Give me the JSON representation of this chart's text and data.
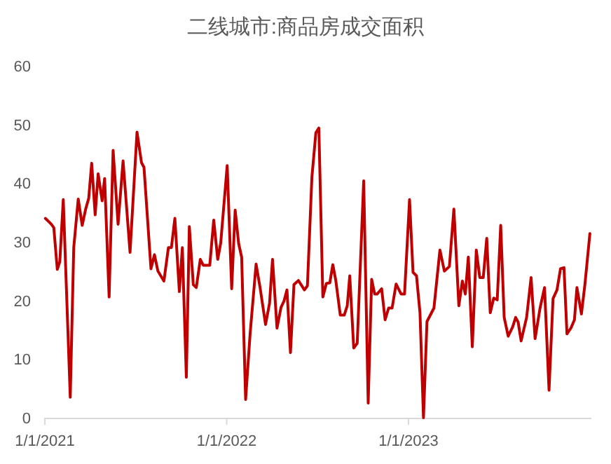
{
  "chart_data": {
    "type": "line",
    "title": "二线城市:商品房成交面积",
    "x": [
      "2021-01-02",
      "2021-01-14",
      "2021-01-19",
      "2021-01-26",
      "2021-01-31",
      "2021-02-07",
      "2021-02-21",
      "2021-02-28",
      "2021-03-09",
      "2021-03-17",
      "2021-03-24",
      "2021-03-30",
      "2021-04-05",
      "2021-04-12",
      "2021-04-18",
      "2021-04-26",
      "2021-05-01",
      "2021-05-10",
      "2021-05-18",
      "2021-05-28",
      "2021-06-07",
      "2021-06-21",
      "2021-07-05",
      "2021-07-14",
      "2021-07-19",
      "2021-08-02",
      "2021-08-09",
      "2021-08-16",
      "2021-08-28",
      "2021-09-06",
      "2021-09-12",
      "2021-09-19",
      "2021-09-28",
      "2021-10-04",
      "2021-10-12",
      "2021-10-18",
      "2021-10-26",
      "2021-11-01",
      "2021-11-09",
      "2021-11-15",
      "2021-11-28",
      "2021-12-06",
      "2021-12-14",
      "2021-12-20",
      "2022-01-02",
      "2022-01-11",
      "2022-01-18",
      "2022-01-25",
      "2022-01-31",
      "2022-02-08",
      "2022-02-17",
      "2022-03-01",
      "2022-03-09",
      "2022-03-20",
      "2022-03-28",
      "2022-04-03",
      "2022-04-12",
      "2022-04-20",
      "2022-04-26",
      "2022-05-02",
      "2022-05-09",
      "2022-05-16",
      "2022-05-25",
      "2022-06-06",
      "2022-06-12",
      "2022-06-21",
      "2022-06-29",
      "2022-07-05",
      "2022-07-13",
      "2022-07-20",
      "2022-07-27",
      "2022-08-02",
      "2022-08-08",
      "2022-08-17",
      "2022-08-25",
      "2022-08-31",
      "2022-09-05",
      "2022-09-13",
      "2022-09-20",
      "2022-10-03",
      "2022-10-12",
      "2022-10-19",
      "2022-10-25",
      "2022-10-30",
      "2022-11-08",
      "2022-11-15",
      "2022-11-22",
      "2022-11-29",
      "2022-12-07",
      "2022-12-17",
      "2022-12-24",
      "2023-01-03",
      "2023-01-10",
      "2023-01-17",
      "2023-01-24",
      "2023-01-31",
      "2023-02-07",
      "2023-02-21",
      "2023-03-05",
      "2023-03-14",
      "2023-03-24",
      "2023-04-02",
      "2023-04-12",
      "2023-04-19",
      "2023-04-25",
      "2023-05-01",
      "2023-05-09",
      "2023-05-17",
      "2023-05-24",
      "2023-05-31",
      "2023-06-07",
      "2023-06-14",
      "2023-06-21",
      "2023-06-28",
      "2023-07-05",
      "2023-07-12",
      "2023-07-20",
      "2023-07-29",
      "2023-08-04",
      "2023-08-09",
      "2023-08-15",
      "2023-08-26",
      "2023-09-04",
      "2023-09-12",
      "2023-09-22",
      "2023-10-01",
      "2023-10-10",
      "2023-10-18",
      "2023-10-26",
      "2023-11-02",
      "2023-11-09",
      "2023-11-15",
      "2023-11-23",
      "2023-11-30",
      "2023-12-05",
      "2023-12-14",
      "2023-12-21",
      "2023-12-31"
    ],
    "series": [
      {
        "color": "#c00000",
        "values": [
          34.0,
          33.0,
          32.4,
          25.3,
          26.6,
          37.2,
          3.5,
          29.0,
          37.3,
          32.8,
          35.6,
          37.4,
          43.4,
          34.6,
          41.6,
          37.0,
          40.8,
          20.6,
          45.6,
          33.0,
          43.8,
          28.2,
          48.7,
          43.5,
          42.7,
          25.4,
          27.8,
          25.0,
          23.3,
          29.0,
          29.0,
          34.0,
          21.5,
          29.0,
          6.9,
          32.6,
          22.7,
          22.2,
          27.0,
          26.0,
          26.0,
          33.7,
          27.0,
          29.8,
          43.0,
          22.0,
          35.4,
          29.7,
          27.4,
          3.1,
          14.3,
          26.2,
          22.2,
          15.9,
          19.5,
          27.0,
          15.3,
          18.8,
          19.9,
          21.8,
          11.1,
          22.7,
          23.4,
          21.8,
          22.5,
          41.0,
          48.6,
          49.4,
          20.6,
          22.9,
          23.0,
          26.1,
          23.4,
          17.5,
          17.5,
          19.1,
          24.2,
          11.9,
          12.7,
          40.4,
          2.5,
          23.6,
          21.1,
          21.1,
          22.0,
          16.7,
          18.7,
          18.7,
          22.8,
          21.1,
          21.1,
          37.2,
          24.8,
          24.2,
          17.9,
          0,
          16.4,
          18.7,
          28.6,
          25.0,
          25.8,
          35.6,
          19.1,
          23.3,
          21.1,
          27.4,
          12.1,
          28.6,
          23.9,
          23.9,
          30.6,
          17.9,
          20.4,
          20.1,
          32.8,
          17.1,
          13.9,
          15.5,
          17.1,
          16.3,
          13.1,
          17.1,
          23.9,
          13.5,
          18.7,
          22.2,
          4.7,
          20.3,
          21.8,
          25.4,
          25.6,
          14.3,
          15.3,
          16.7,
          22.2,
          17.7,
          22.7,
          31.4
        ]
      }
    ],
    "xlim": [
      "2021-01-01",
      "2024-01-03"
    ],
    "xticks": [
      {
        "value": "2021-01-01",
        "label": "1/1/2021"
      },
      {
        "value": "2022-01-01",
        "label": "1/1/2022"
      },
      {
        "value": "2023-01-01",
        "label": "1/1/2023"
      }
    ],
    "ylim": [
      0,
      60
    ],
    "yticks": [
      0,
      10,
      20,
      30,
      40,
      50,
      60
    ],
    "grid": false
  }
}
